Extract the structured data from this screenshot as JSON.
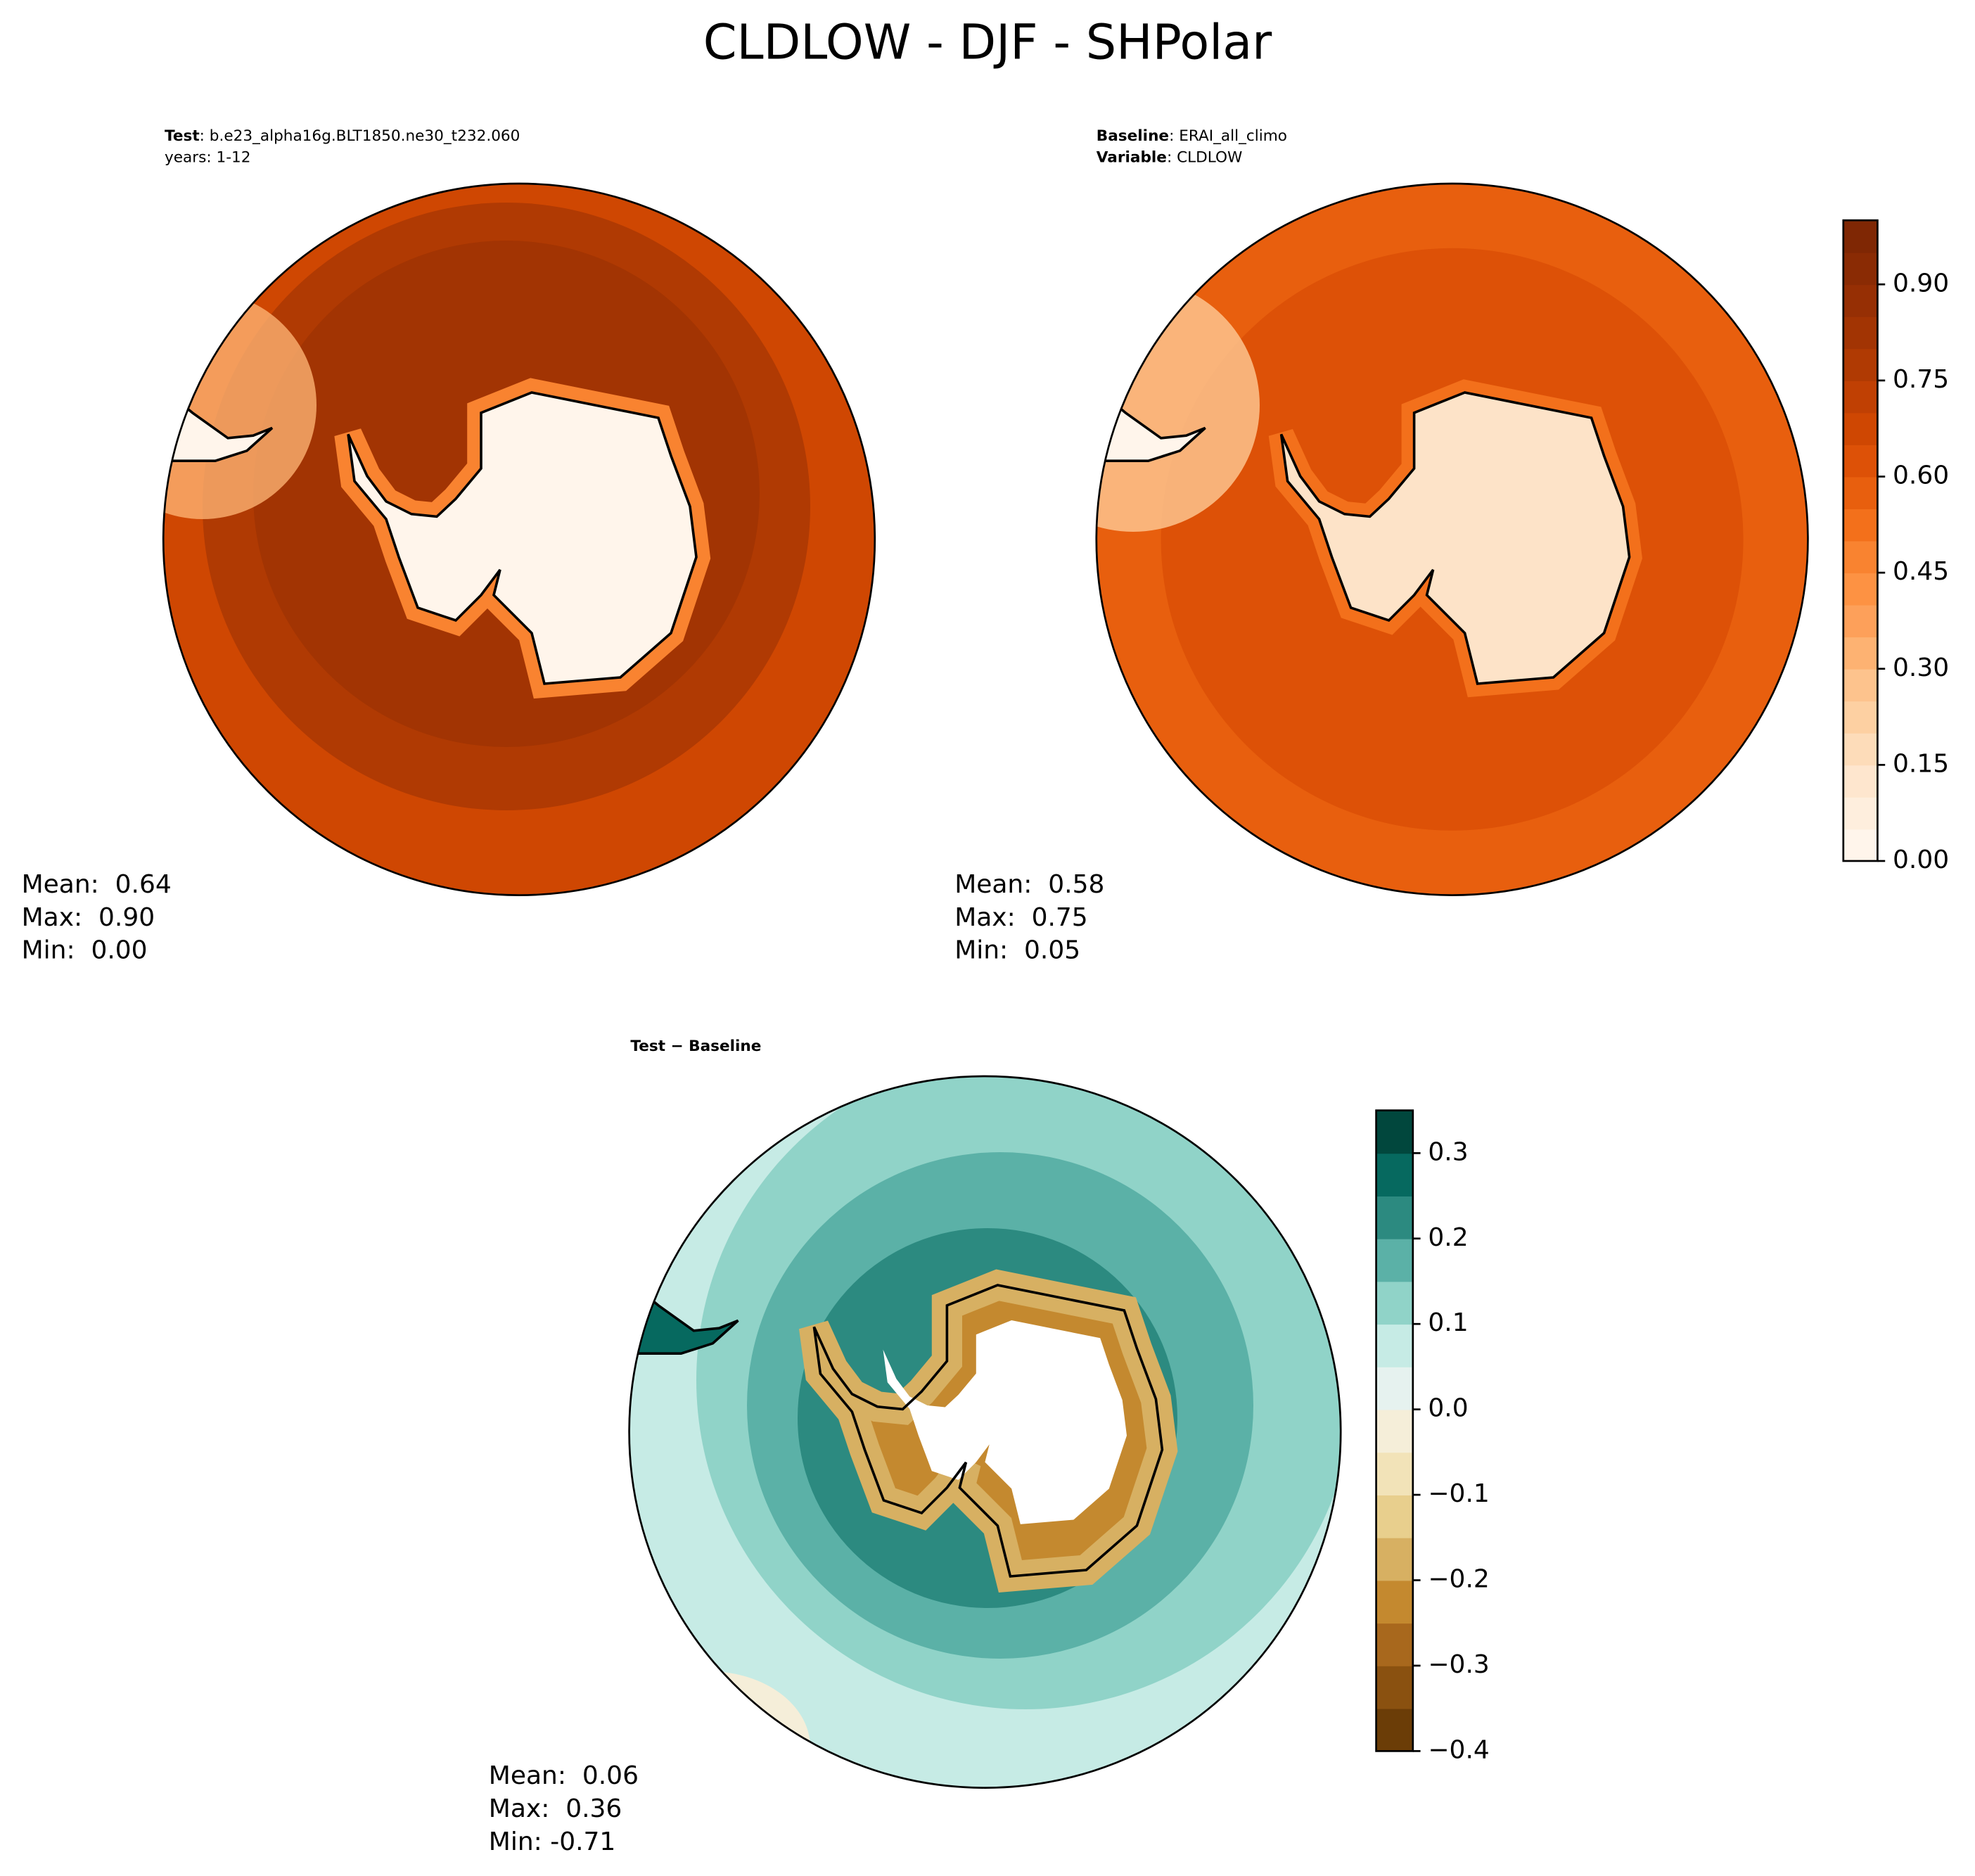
{
  "title": "CLDLOW - DJF - SHPolar",
  "panels": [
    {
      "lines": [
        [
          "Test",
          ": b.e23_alpha16g.BLT1850.ne30_t232.060"
        ],
        [
          "",
          "years: 1-12"
        ]
      ],
      "stats": [
        "Mean:  0.64",
        "Max:  0.90",
        "Min:  0.00"
      ]
    },
    {
      "lines": [
        [
          "Baseline",
          ": ERAI_all_climo"
        ],
        [
          "Variable",
          ": CLDLOW"
        ]
      ],
      "stats": [
        "Mean:  0.58",
        "Max:  0.75",
        "Min:  0.05"
      ]
    },
    {
      "lines": [
        [
          "Test − Baseline",
          ""
        ]
      ],
      "stats": [
        "Mean:  0.06",
        "Max:  0.36",
        "Min: -0.71"
      ]
    }
  ],
  "colorbars": [
    {
      "lim": [
        0,
        1.0
      ],
      "ticks": [
        {
          "value": 0,
          "label": "0.00"
        },
        0.15,
        {
          "value": 0.3,
          "label": "0.30"
        },
        0.45,
        {
          "value": 0.6,
          "label": "0.60"
        },
        0.75,
        {
          "value": 0.9,
          "label": "0.90"
        }
      ],
      "colors": [
        "#fff5eb",
        "#feeedd",
        "#fee6ce",
        "#fddcb9",
        "#fdd0a2",
        "#fdc38d",
        "#fdb272",
        "#fda05a",
        "#fd9243",
        "#f98330",
        "#f3701b",
        "#e85f0e",
        "#dd5107",
        "#cf4702",
        "#c04003",
        "#b03a03",
        "#a23403",
        "#962f04",
        "#8a2b04",
        "#7f2704"
      ]
    },
    {
      "lim": [
        -0.4,
        0.35
      ],
      "ticks": [
        {
          "value": -0.4,
          "label": "−0.4"
        },
        {
          "value": -0.3,
          "label": "−0.3"
        },
        {
          "value": -0.2,
          "label": "−0.2"
        },
        {
          "value": -0.1,
          "label": "−0.1"
        },
        {
          "value": 0,
          "label": "0.0"
        },
        0.1,
        0.2,
        0.3
      ],
      "colors": [
        "#6b3d07",
        "#8a5110",
        "#a8681d",
        "#c4892f",
        "#d7b062",
        "#e8cf8d",
        "#f2e3b8",
        "#f5eed9",
        "#e6f2ef",
        "#c6ebe5",
        "#90d3c8",
        "#5bb1a7",
        "#2c8a80",
        "#06695f",
        "#01473d"
      ]
    }
  ]
}
